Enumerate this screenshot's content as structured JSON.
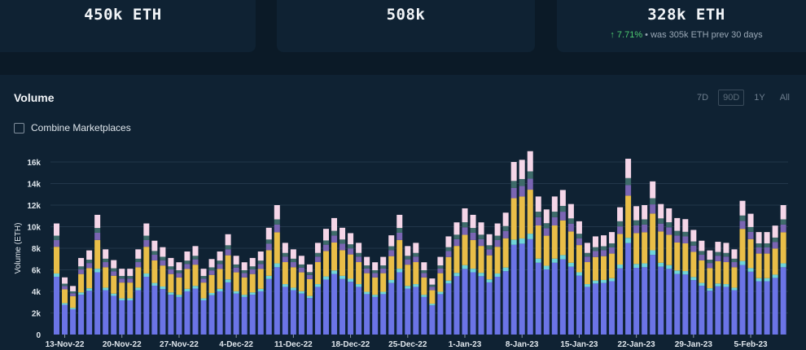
{
  "stats": [
    {
      "value": "450k ETH",
      "sub": null
    },
    {
      "value": "508k",
      "sub": null
    },
    {
      "value": "328k ETH",
      "sub": {
        "change": "↑ 7.71%",
        "rest": " • was 305k ETH prev 30 days"
      }
    }
  ],
  "panel": {
    "title": "Volume",
    "ranges": [
      "7D",
      "90D",
      "1Y",
      "All"
    ],
    "active_range": "90D",
    "combine_label": "Combine Marketplaces",
    "combine_checked": false
  },
  "colors": {
    "background": "#0b1a27",
    "panel": "#0f2233",
    "seg": [
      "#6b74e6",
      "#6fd4d9",
      "#e9be48",
      "#7a65b3",
      "#3e6b6a",
      "#f5d6e8"
    ]
  },
  "chart_data": {
    "type": "bar",
    "stacked": true,
    "ylabel": "Volume (ETH)",
    "ylim": [
      0,
      16000
    ],
    "yticks": [
      0,
      2000,
      4000,
      6000,
      8000,
      10000,
      12000,
      14000,
      16000
    ],
    "ytick_labels": [
      "0",
      "2k",
      "4k",
      "6k",
      "8k",
      "10k",
      "12k",
      "14k",
      "16k"
    ],
    "grid": true,
    "xtick_labels": [
      {
        "index": 1,
        "label": "13-Nov-22"
      },
      {
        "index": 8,
        "label": "20-Nov-22"
      },
      {
        "index": 15,
        "label": "27-Nov-22"
      },
      {
        "index": 22,
        "label": "4-Dec-22"
      },
      {
        "index": 29,
        "label": "11-Dec-22"
      },
      {
        "index": 36,
        "label": "18-Dec-22"
      },
      {
        "index": 43,
        "label": "25-Dec-22"
      },
      {
        "index": 50,
        "label": "1-Jan-23"
      },
      {
        "index": 57,
        "label": "8-Jan-23"
      },
      {
        "index": 64,
        "label": "15-Jan-23"
      },
      {
        "index": 71,
        "label": "22-Jan-23"
      },
      {
        "index": 78,
        "label": "29-Jan-23"
      },
      {
        "index": 85,
        "label": "5-Feb-23"
      }
    ],
    "totals": [
      10300,
      5300,
      4500,
      7100,
      7800,
      11100,
      7900,
      6900,
      6100,
      6100,
      7900,
      10300,
      8700,
      8100,
      7100,
      6700,
      7700,
      8200,
      6100,
      7000,
      7700,
      9300,
      7300,
      6700,
      7100,
      7700,
      9900,
      12000,
      8500,
      7900,
      7300,
      6500,
      8500,
      9800,
      10800,
      9900,
      9400,
      8500,
      7200,
      6700,
      7200,
      9200,
      11100,
      8200,
      8500,
      6700,
      5200,
      7200,
      9100,
      10400,
      11700,
      11100,
      10400,
      9300,
      10300,
      11300,
      16000,
      16200,
      17000,
      12800,
      11600,
      12800,
      13400,
      12100,
      10500,
      8500,
      9100,
      9200,
      9500,
      11800,
      16300,
      11900,
      12000,
      14200,
      12100,
      11700,
      10800,
      10700,
      9700,
      8700,
      7800,
      8600,
      8500,
      7900,
      12400,
      11200,
      9500,
      9500,
      10100,
      12000
    ],
    "series_fractions": [
      0.52,
      0.03,
      0.24,
      0.06,
      0.04,
      0.11
    ]
  }
}
